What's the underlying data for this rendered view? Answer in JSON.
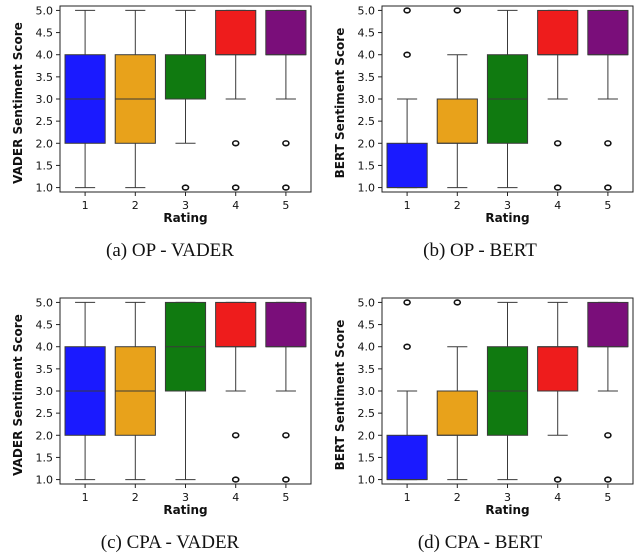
{
  "colors": [
    "#1a1aff",
    "#e8a21b",
    "#107a10",
    "#ee1c1c",
    "#7a0e7a"
  ],
  "chart_data": [
    {
      "type": "box",
      "caption": "(a) OP - VADER",
      "xlabel": "Rating",
      "ylabel": "VADER Sentiment Score",
      "categories": [
        "1",
        "2",
        "3",
        "4",
        "5"
      ],
      "ylim": [
        0.9,
        5.1
      ],
      "yticks": [
        "1.0",
        "1.5",
        "2.0",
        "2.5",
        "3.0",
        "3.5",
        "4.0",
        "4.5",
        "5.0"
      ],
      "boxes": [
        {
          "whislo": 1.0,
          "q1": 2.0,
          "med": 3.0,
          "q3": 4.0,
          "whishi": 5.0,
          "fliers": []
        },
        {
          "whislo": 1.0,
          "q1": 2.0,
          "med": 3.0,
          "q3": 4.0,
          "whishi": 5.0,
          "fliers": []
        },
        {
          "whislo": 2.0,
          "q1": 3.0,
          "med": 3.0,
          "q3": 4.0,
          "whishi": 5.0,
          "fliers": [
            1.0
          ]
        },
        {
          "whislo": 3.0,
          "q1": 4.0,
          "med": 4.0,
          "q3": 5.0,
          "whishi": 5.0,
          "fliers": [
            2.0,
            1.0
          ]
        },
        {
          "whislo": 3.0,
          "q1": 4.0,
          "med": 4.0,
          "q3": 5.0,
          "whishi": 5.0,
          "fliers": [
            2.0,
            1.0
          ]
        }
      ]
    },
    {
      "type": "box",
      "caption": "(b) OP - BERT",
      "xlabel": "Rating",
      "ylabel": "BERT Sentiment Score",
      "categories": [
        "1",
        "2",
        "3",
        "4",
        "5"
      ],
      "ylim": [
        0.9,
        5.1
      ],
      "yticks": [
        "1.0",
        "1.5",
        "2.0",
        "2.5",
        "3.0",
        "3.5",
        "4.0",
        "4.5",
        "5.0"
      ],
      "boxes": [
        {
          "whislo": 1.0,
          "q1": 1.0,
          "med": 1.0,
          "q3": 2.0,
          "whishi": 3.0,
          "fliers": [
            4.0,
            5.0
          ]
        },
        {
          "whislo": 1.0,
          "q1": 2.0,
          "med": 2.0,
          "q3": 3.0,
          "whishi": 4.0,
          "fliers": [
            5.0
          ]
        },
        {
          "whislo": 1.0,
          "q1": 2.0,
          "med": 3.0,
          "q3": 4.0,
          "whishi": 5.0,
          "fliers": []
        },
        {
          "whislo": 3.0,
          "q1": 4.0,
          "med": 4.0,
          "q3": 5.0,
          "whishi": 5.0,
          "fliers": [
            2.0,
            1.0
          ]
        },
        {
          "whislo": 3.0,
          "q1": 4.0,
          "med": 4.0,
          "q3": 5.0,
          "whishi": 5.0,
          "fliers": [
            2.0,
            1.0
          ]
        }
      ]
    },
    {
      "type": "box",
      "caption": "(c) CPA - VADER",
      "xlabel": "Rating",
      "ylabel": "VADER Sentiment Score",
      "categories": [
        "1",
        "2",
        "3",
        "4",
        "5"
      ],
      "ylim": [
        0.9,
        5.1
      ],
      "yticks": [
        "1.0",
        "1.5",
        "2.0",
        "2.5",
        "3.0",
        "3.5",
        "4.0",
        "4.5",
        "5.0"
      ],
      "boxes": [
        {
          "whislo": 1.0,
          "q1": 2.0,
          "med": 3.0,
          "q3": 4.0,
          "whishi": 5.0,
          "fliers": []
        },
        {
          "whislo": 1.0,
          "q1": 2.0,
          "med": 3.0,
          "q3": 4.0,
          "whishi": 5.0,
          "fliers": []
        },
        {
          "whislo": 1.0,
          "q1": 3.0,
          "med": 4.0,
          "q3": 5.0,
          "whishi": 5.0,
          "fliers": []
        },
        {
          "whislo": 3.0,
          "q1": 4.0,
          "med": 4.0,
          "q3": 5.0,
          "whishi": 5.0,
          "fliers": [
            2.0,
            1.0
          ]
        },
        {
          "whislo": 3.0,
          "q1": 4.0,
          "med": 4.0,
          "q3": 5.0,
          "whishi": 5.0,
          "fliers": [
            2.0,
            1.0
          ]
        }
      ]
    },
    {
      "type": "box",
      "caption": "(d) CPA - BERT",
      "xlabel": "Rating",
      "ylabel": "BERT Sentiment Score",
      "categories": [
        "1",
        "2",
        "3",
        "4",
        "5"
      ],
      "ylim": [
        0.9,
        5.1
      ],
      "yticks": [
        "1.0",
        "1.5",
        "2.0",
        "2.5",
        "3.0",
        "3.5",
        "4.0",
        "4.5",
        "5.0"
      ],
      "boxes": [
        {
          "whislo": 1.0,
          "q1": 1.0,
          "med": 1.0,
          "q3": 2.0,
          "whishi": 3.0,
          "fliers": [
            4.0,
            5.0
          ]
        },
        {
          "whislo": 1.0,
          "q1": 2.0,
          "med": 2.0,
          "q3": 3.0,
          "whishi": 4.0,
          "fliers": [
            5.0
          ]
        },
        {
          "whislo": 1.0,
          "q1": 2.0,
          "med": 3.0,
          "q3": 4.0,
          "whishi": 5.0,
          "fliers": []
        },
        {
          "whislo": 2.0,
          "q1": 3.0,
          "med": 4.0,
          "q3": 4.0,
          "whishi": 5.0,
          "fliers": [
            1.0
          ]
        },
        {
          "whislo": 3.0,
          "q1": 4.0,
          "med": 4.0,
          "q3": 5.0,
          "whishi": 5.0,
          "fliers": [
            2.0,
            1.0
          ]
        }
      ]
    }
  ]
}
